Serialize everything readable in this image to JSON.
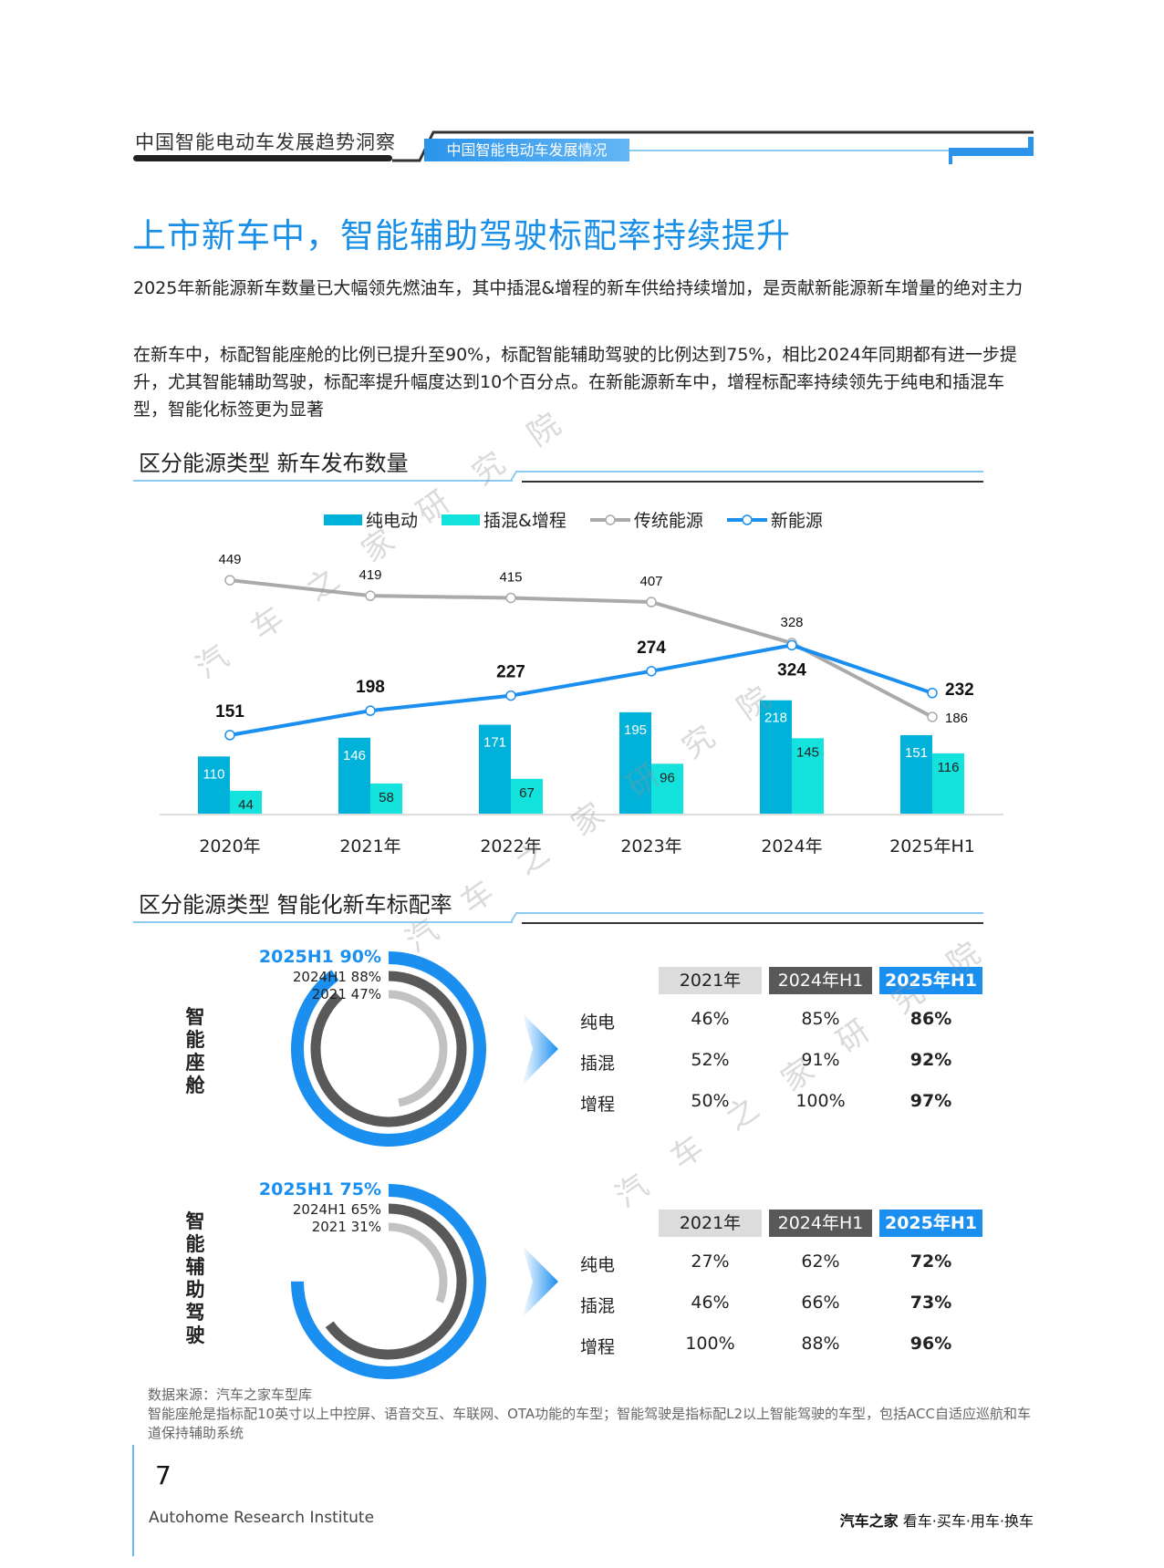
{
  "header": {
    "report_title": "中国智能电动车发展趋势洞察",
    "section_tab": "中国智能电动车发展情况"
  },
  "title": "上市新车中，智能辅助驾驶标配率持续提升",
  "paragraphs": [
    "2025年新能源新车数量已大幅领先燃油车，其中插混&增程的新车供给持续增加，是贡献新能源新车增量的绝对主力",
    "在新车中，标配智能座舱的比例已提升至90%，标配智能辅助驾驶的比例达到75%，相比2024年同期都有进一步提升，尤其智能辅助驾驶，标配率提升幅度达到10个百分点。在新能源新车中，增程标配率持续领先于纯电和插混车型，智能化标签更为显著"
  ],
  "section1_title": "区分能源类型 新车发布数量",
  "section2_title": "区分能源类型 智能化新车标配率",
  "colors": {
    "pure_ev": "#00b2d9",
    "phev_erev": "#14e2dc",
    "traditional": "#aaaaaa",
    "new_energy": "#1a8ff0",
    "accent": "#1a8fe8"
  },
  "chart_data": {
    "type": "bar",
    "categories": [
      "2020年",
      "2021年",
      "2022年",
      "2023年",
      "2024年",
      "2025年H1"
    ],
    "series": [
      {
        "name": "纯电动",
        "type": "bar",
        "values": [
          110,
          146,
          171,
          195,
          218,
          151
        ]
      },
      {
        "name": "插混&增程",
        "type": "bar",
        "values": [
          44,
          58,
          67,
          96,
          145,
          116
        ]
      },
      {
        "name": "传统能源",
        "type": "line",
        "values": [
          449,
          419,
          415,
          407,
          328,
          186
        ]
      },
      {
        "name": "新能源",
        "type": "line",
        "values": [
          151,
          198,
          227,
          274,
          324,
          232
        ]
      }
    ],
    "legend": "top",
    "grid": false
  },
  "intel": [
    {
      "label": "智能座舱",
      "rings": [
        {
          "text": "2025H1 90%",
          "value": 90,
          "color": "#1a8ff0"
        },
        {
          "text": "2024H1 88%",
          "value": 88,
          "color": "#595959"
        },
        {
          "text": "2021 47%",
          "value": 47,
          "color": "#c2c2c2"
        }
      ],
      "headers": [
        "2021年",
        "2024年H1",
        "2025年H1"
      ],
      "rows": [
        {
          "label": "纯电",
          "values": [
            "46%",
            "85%",
            "86%"
          ]
        },
        {
          "label": "插混",
          "values": [
            "52%",
            "91%",
            "92%"
          ]
        },
        {
          "label": "增程",
          "values": [
            "50%",
            "100%",
            "97%"
          ]
        }
      ]
    },
    {
      "label": "智能辅助驾驶",
      "rings": [
        {
          "text": "2025H1 75%",
          "value": 75,
          "color": "#1a8ff0"
        },
        {
          "text": "2024H1 65%",
          "value": 65,
          "color": "#595959"
        },
        {
          "text": "2021 31%",
          "value": 31,
          "color": "#c2c2c2"
        }
      ],
      "headers": [
        "2021年",
        "2024年H1",
        "2025年H1"
      ],
      "rows": [
        {
          "label": "纯电",
          "values": [
            "27%",
            "62%",
            "72%"
          ]
        },
        {
          "label": "插混",
          "values": [
            "46%",
            "66%",
            "73%"
          ]
        },
        {
          "label": "增程",
          "values": [
            "100%",
            "88%",
            "96%"
          ]
        }
      ]
    }
  ],
  "footnotes": [
    "数据来源：汽车之家车型库",
    "智能座舱是指标配10英寸以上中控屏、语音交互、车联网、OTA功能的车型；智能驾驶是指标配L2以上智能驾驶的车型，包括ACC自适应巡航和车道保持辅助系统"
  ],
  "footer": {
    "page_number": "7",
    "institute": "Autohome Research Institute",
    "brand": "汽车之家",
    "slogan": "看车·买车·用车·换车"
  },
  "watermark": "汽车之家研究院"
}
